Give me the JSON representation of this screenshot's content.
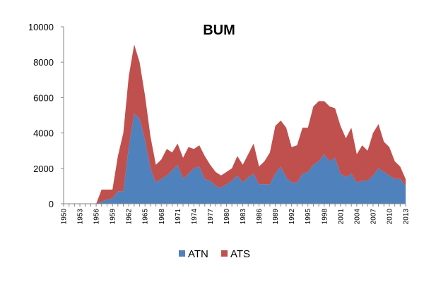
{
  "chart_data": {
    "type": "area",
    "stacked": true,
    "title": "BUM",
    "xlabel": "",
    "ylabel": "",
    "ylim": [
      0,
      10000
    ],
    "yticks": [
      0,
      2000,
      4000,
      6000,
      8000,
      10000
    ],
    "xtick_labels": [
      "1950",
      "1953",
      "1956",
      "1959",
      "1962",
      "1965",
      "1968",
      "1971",
      "1974",
      "1977",
      "1980",
      "1983",
      "1986",
      "1989",
      "1992",
      "1995",
      "1998",
      "2001",
      "2004",
      "2007",
      "2010",
      "2013"
    ],
    "grid": false,
    "legend_position": "bottom",
    "x": [
      1950,
      1951,
      1952,
      1953,
      1954,
      1955,
      1956,
      1957,
      1958,
      1959,
      1960,
      1961,
      1962,
      1963,
      1964,
      1965,
      1966,
      1967,
      1968,
      1969,
      1970,
      1971,
      1972,
      1973,
      1974,
      1975,
      1976,
      1977,
      1978,
      1979,
      1980,
      1981,
      1982,
      1983,
      1984,
      1985,
      1986,
      1987,
      1988,
      1989,
      1990,
      1991,
      1992,
      1993,
      1994,
      1995,
      1996,
      1997,
      1998,
      1999,
      2000,
      2001,
      2002,
      2003,
      2004,
      2005,
      2006,
      2007,
      2008,
      2009,
      2010,
      2011,
      2012,
      2013
    ],
    "series": [
      {
        "name": "ATN",
        "color": "#4f81bd",
        "values": [
          0,
          0,
          0,
          0,
          0,
          0,
          0,
          100,
          250,
          300,
          700,
          700,
          3200,
          5100,
          4800,
          3600,
          2000,
          1200,
          1400,
          1600,
          1900,
          2200,
          1400,
          1700,
          2000,
          2100,
          1400,
          1300,
          1000,
          900,
          1100,
          1300,
          1600,
          1200,
          1500,
          1700,
          1100,
          1100,
          1100,
          1700,
          2100,
          1500,
          1200,
          1200,
          1700,
          1800,
          2200,
          2400,
          2800,
          2400,
          2600,
          1700,
          1500,
          1700,
          1200,
          1300,
          1300,
          1600,
          2000,
          1800,
          1600,
          1400,
          1400,
          1000
        ]
      },
      {
        "name": "ATS",
        "color": "#c0504d",
        "values": [
          0,
          0,
          0,
          0,
          0,
          0,
          0,
          700,
          550,
          500,
          2000,
          3300,
          4000,
          3900,
          3200,
          2500,
          1800,
          1000,
          1100,
          1500,
          1000,
          1200,
          1200,
          1500,
          1100,
          1200,
          1300,
          900,
          800,
          700,
          700,
          700,
          1100,
          1000,
          1300,
          1700,
          1000,
          1300,
          1800,
          2700,
          2600,
          2800,
          2000,
          2100,
          2600,
          2500,
          3300,
          3400,
          3000,
          3100,
          2800,
          2700,
          2200,
          2600,
          1600,
          2000,
          1700,
          2400,
          2500,
          1700,
          1600,
          1000,
          700,
          400
        ]
      }
    ]
  }
}
